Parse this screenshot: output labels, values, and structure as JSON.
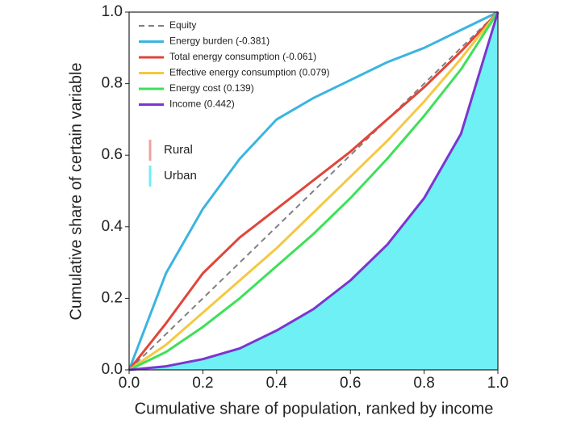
{
  "chart_data": {
    "type": "line",
    "xlabel": "Cumulative share of population, ranked by income",
    "ylabel": "Cumulative share of certain variable",
    "x": [
      0,
      0.1,
      0.2,
      0.3,
      0.4,
      0.5,
      0.6,
      0.7,
      0.8,
      0.9,
      1
    ],
    "series": [
      {
        "name": "Equity",
        "color": "#808080",
        "dash": true,
        "values": [
          0,
          0.1,
          0.2,
          0.3,
          0.4,
          0.5,
          0.6,
          0.7,
          0.8,
          0.9,
          1
        ]
      },
      {
        "name": "Energy burden (-0.381)",
        "color": "#3bb4e0",
        "values": [
          0,
          0.27,
          0.45,
          0.59,
          0.7,
          0.76,
          0.81,
          0.86,
          0.9,
          0.95,
          1
        ]
      },
      {
        "name": "Total energy consumption (-0.061)",
        "color": "#e0453a",
        "values": [
          0,
          0.13,
          0.27,
          0.37,
          0.45,
          0.53,
          0.61,
          0.7,
          0.79,
          0.89,
          1
        ]
      },
      {
        "name": "Effective energy consumption (0.079)",
        "color": "#f5c842",
        "values": [
          0,
          0.07,
          0.16,
          0.25,
          0.34,
          0.44,
          0.54,
          0.64,
          0.75,
          0.87,
          1
        ]
      },
      {
        "name": "Energy cost (0.139)",
        "color": "#3ee05a",
        "values": [
          0,
          0.05,
          0.12,
          0.2,
          0.29,
          0.38,
          0.48,
          0.59,
          0.71,
          0.84,
          1
        ]
      },
      {
        "name": "Income (0.442)",
        "color": "#7b35d0",
        "values": [
          0,
          0.01,
          0.03,
          0.06,
          0.11,
          0.17,
          0.25,
          0.35,
          0.48,
          0.66,
          1
        ]
      }
    ],
    "groups": [
      {
        "name": "Rural",
        "color": "#f0a0a0"
      },
      {
        "name": "Urban",
        "color": "#6ff0f5"
      }
    ],
    "xlim": [
      0,
      1
    ],
    "ylim": [
      0,
      1
    ],
    "xticks": [
      {
        "value": 0,
        "label": "0.0"
      },
      0.2,
      0.4,
      0.6,
      0.8,
      {
        "value": 1,
        "label": "1.0"
      }
    ],
    "yticks": [
      {
        "value": 0,
        "label": "0.0"
      },
      0.2,
      0.4,
      0.6,
      0.8,
      {
        "value": 1,
        "label": "1.0"
      }
    ],
    "legend": "upper left"
  }
}
